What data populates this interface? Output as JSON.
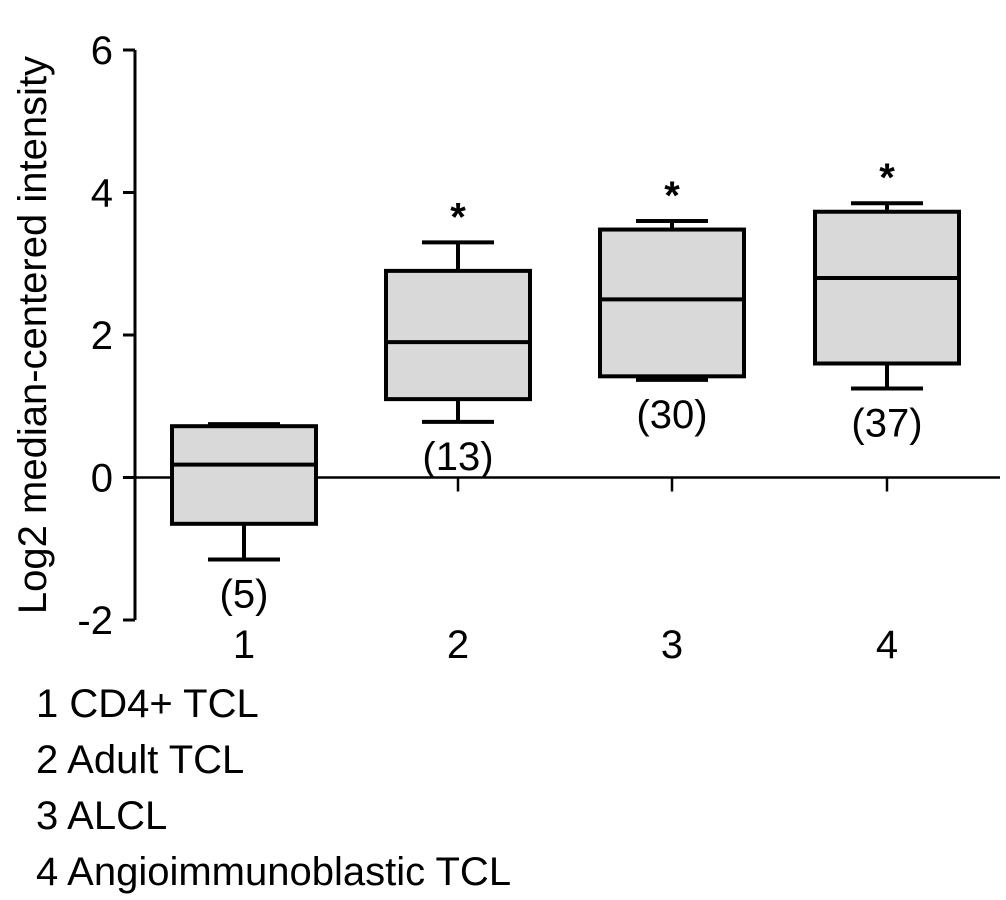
{
  "chart_data": {
    "type": "box",
    "ylabel": "Log2 median-centered intensity",
    "xlabel": "",
    "ylim": [
      -2,
      6
    ],
    "yticks": [
      -2,
      0,
      2,
      4,
      6
    ],
    "ytick_labels": [
      "-2",
      "0",
      "2",
      "4",
      "6"
    ],
    "categories": [
      "1",
      "2",
      "3",
      "4"
    ],
    "boxes": [
      {
        "category": "1",
        "whisker_low": -1.15,
        "q1": -0.65,
        "median": 0.18,
        "q3": 0.72,
        "whisker_high": 0.75,
        "n_label": "(5)",
        "significance": ""
      },
      {
        "category": "2",
        "whisker_low": 0.78,
        "q1": 1.1,
        "median": 1.9,
        "q3": 2.9,
        "whisker_high": 3.3,
        "n_label": "(13)",
        "significance": "*"
      },
      {
        "category": "3",
        "whisker_low": 1.37,
        "q1": 1.42,
        "median": 2.5,
        "q3": 3.48,
        "whisker_high": 3.6,
        "n_label": "(30)",
        "significance": "*"
      },
      {
        "category": "4",
        "whisker_low": 1.25,
        "q1": 1.6,
        "median": 2.8,
        "q3": 3.73,
        "whisker_high": 3.85,
        "n_label": "(37)",
        "significance": "*"
      }
    ],
    "legend": [
      "1 CD4+ TCL",
      "2 Adult TCL",
      "3 ALCL",
      "4 Angioimmunoblastic TCL"
    ],
    "colors": {
      "box_fill": "#d9d9d9",
      "stroke": "#000000"
    }
  }
}
